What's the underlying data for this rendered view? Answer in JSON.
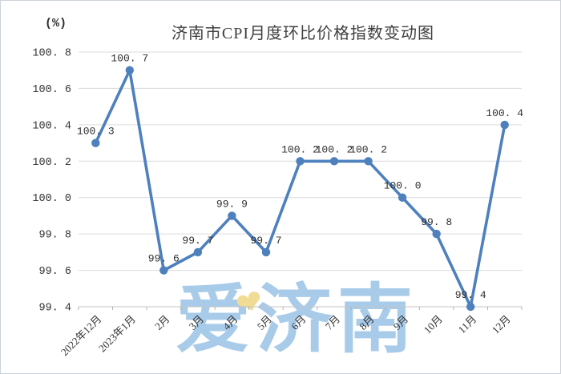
{
  "header": {
    "title": "济南市CPI月度环比价格指数变动图",
    "unit_label": "(%)"
  },
  "watermark": {
    "text": "爱济南",
    "heart_icon": "heart",
    "text_color": "#a8cbe9",
    "heart_color": "#f1dc96"
  },
  "chart_data": {
    "type": "line",
    "title": "济南市CPI月度环比价格指数变动图",
    "ylabel": "(%)",
    "xlabel": "",
    "categories": [
      "2022年12月",
      "2023年1月",
      "2月",
      "3月",
      "4月",
      "5月",
      "6月",
      "7月",
      "8月",
      "9月",
      "10月",
      "11月",
      "12月"
    ],
    "values": [
      100.3,
      100.7,
      99.6,
      99.7,
      99.9,
      99.7,
      100.2,
      100.2,
      100.2,
      100.0,
      99.8,
      99.4,
      100.4
    ],
    "ylim": [
      99.4,
      100.8
    ],
    "ytick_step": 0.2,
    "grid": true,
    "legend_position": "none",
    "data_labels": true,
    "line_color": "#4d80bc",
    "marker_color": "#4d80bc",
    "grid_color": "#dcdcdc",
    "axis_color": "#c3c3c3",
    "label_color": "#333333",
    "title_color": "#3f3f3f"
  }
}
